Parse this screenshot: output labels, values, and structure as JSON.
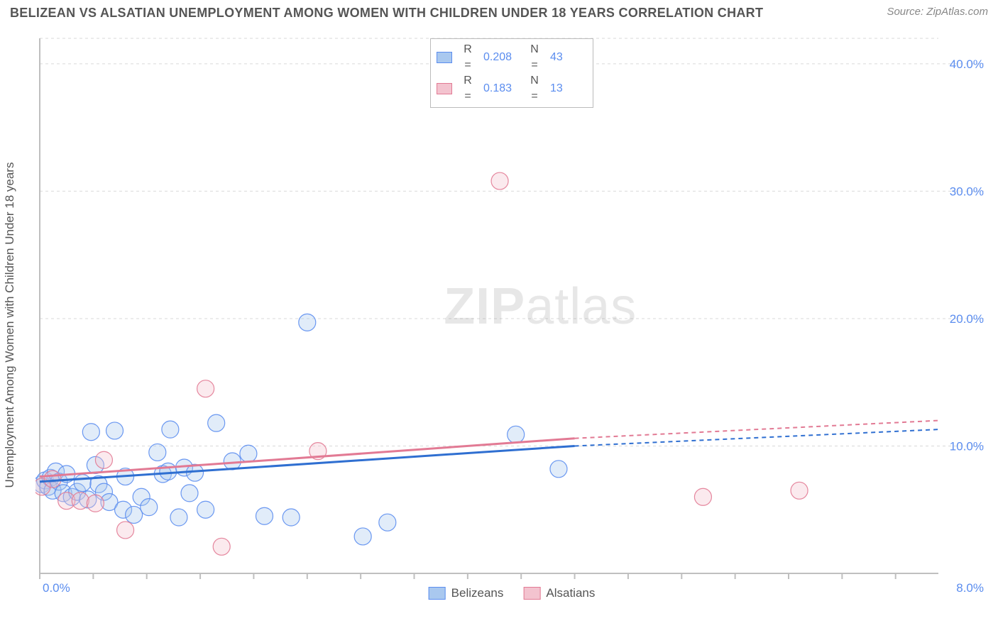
{
  "header": {
    "title": "BELIZEAN VS ALSATIAN UNEMPLOYMENT AMONG WOMEN WITH CHILDREN UNDER 18 YEARS CORRELATION CHART",
    "source": "Source: ZipAtlas.com"
  },
  "watermark": {
    "left": "ZIP",
    "right": "atlas"
  },
  "chart": {
    "type": "scatter",
    "ylabel": "Unemployment Among Women with Children Under 18 years",
    "xlim": [
      0,
      8.4
    ],
    "ylim": [
      0,
      42
    ],
    "x_axis": {
      "label_min": "0.0%",
      "label_max": "8.0%",
      "tick_positions": [
        0,
        0.5,
        1.0,
        1.5,
        2.0,
        2.5,
        3.0,
        3.5,
        4.0,
        4.5,
        5.0,
        5.5,
        6.0,
        6.5,
        7.0,
        7.5,
        8.0
      ]
    },
    "y_axis": {
      "ticks": [
        {
          "v": 10,
          "label": "10.0%"
        },
        {
          "v": 20,
          "label": "20.0%"
        },
        {
          "v": 30,
          "label": "30.0%"
        },
        {
          "v": 40,
          "label": "40.0%"
        }
      ]
    },
    "colors": {
      "grid": "#d9d9d9",
      "axis": "#bfbfbf",
      "tick_text": "#5b8def",
      "series_a_fill": "#a9c8ef",
      "series_a_stroke": "#5b8def",
      "series_a_line": "#2f6fd1",
      "series_b_fill": "#f3c3cf",
      "series_b_stroke": "#e27a94",
      "series_b_line": "#e27a94",
      "background": "#ffffff"
    },
    "marker_radius": 12,
    "series": [
      {
        "key": "belizeans",
        "name": "Belizeans",
        "r_stat": "0.208",
        "n_stat": "43",
        "points": [
          [
            0.02,
            7.0
          ],
          [
            0.05,
            7.3
          ],
          [
            0.08,
            6.8
          ],
          [
            0.1,
            7.5
          ],
          [
            0.12,
            6.5
          ],
          [
            0.15,
            8.0
          ],
          [
            0.18,
            7.2
          ],
          [
            0.22,
            6.3
          ],
          [
            0.25,
            7.8
          ],
          [
            0.3,
            6.0
          ],
          [
            0.35,
            6.4
          ],
          [
            0.4,
            7.1
          ],
          [
            0.45,
            5.8
          ],
          [
            0.48,
            11.1
          ],
          [
            0.52,
            8.5
          ],
          [
            0.55,
            7.0
          ],
          [
            0.6,
            6.4
          ],
          [
            0.65,
            5.6
          ],
          [
            0.7,
            11.2
          ],
          [
            0.78,
            5.0
          ],
          [
            0.8,
            7.6
          ],
          [
            0.88,
            4.6
          ],
          [
            0.95,
            6.0
          ],
          [
            1.02,
            5.2
          ],
          [
            1.1,
            9.5
          ],
          [
            1.15,
            7.8
          ],
          [
            1.2,
            8.0
          ],
          [
            1.22,
            11.3
          ],
          [
            1.3,
            4.4
          ],
          [
            1.35,
            8.3
          ],
          [
            1.4,
            6.3
          ],
          [
            1.45,
            7.9
          ],
          [
            1.55,
            5.0
          ],
          [
            1.65,
            11.8
          ],
          [
            1.8,
            8.8
          ],
          [
            1.95,
            9.4
          ],
          [
            2.1,
            4.5
          ],
          [
            2.35,
            4.4
          ],
          [
            2.5,
            19.7
          ],
          [
            3.02,
            2.9
          ],
          [
            4.45,
            10.9
          ],
          [
            4.85,
            8.2
          ],
          [
            3.25,
            4.0
          ]
        ],
        "trend": {
          "x1": 0.0,
          "y1": 7.2,
          "x2": 5.0,
          "y2": 10.0,
          "x3": 8.4,
          "y3": 11.3
        }
      },
      {
        "key": "alsatians",
        "name": "Alsatians",
        "r_stat": "0.183",
        "n_stat": "13",
        "points": [
          [
            0.02,
            6.8
          ],
          [
            0.12,
            7.4
          ],
          [
            0.25,
            5.7
          ],
          [
            0.38,
            5.7
          ],
          [
            0.52,
            5.5
          ],
          [
            0.6,
            8.9
          ],
          [
            0.8,
            3.4
          ],
          [
            1.55,
            14.5
          ],
          [
            1.7,
            2.1
          ],
          [
            2.6,
            9.6
          ],
          [
            4.3,
            30.8
          ],
          [
            6.2,
            6.0
          ],
          [
            7.1,
            6.5
          ]
        ],
        "trend": {
          "x1": 0.0,
          "y1": 7.6,
          "x2": 5.0,
          "y2": 10.6,
          "x3": 8.4,
          "y3": 12.0
        }
      }
    ],
    "bottom_legend": [
      {
        "label": "Belizeans",
        "fill": "#a9c8ef",
        "stroke": "#5b8def"
      },
      {
        "label": "Alsatians",
        "fill": "#f3c3cf",
        "stroke": "#e27a94"
      }
    ]
  }
}
